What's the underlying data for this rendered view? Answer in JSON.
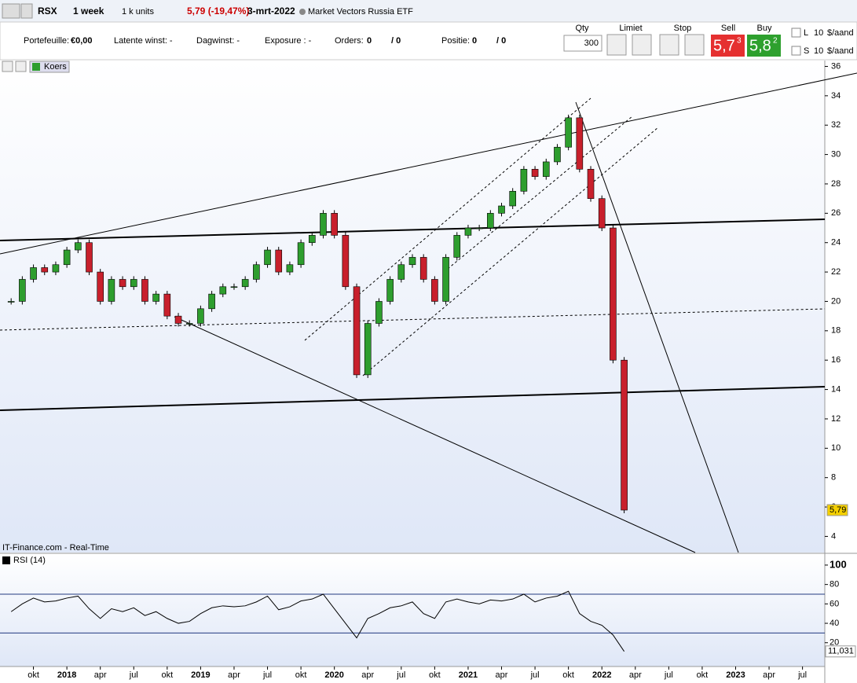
{
  "toolbar": {
    "symbol": "RSX",
    "interval": "1 week",
    "units": "1 k units",
    "change": "5,79 (-19,47%)",
    "date": "3-mrt-2022",
    "name": "Market Vectors Russia ETF"
  },
  "account": {
    "portfolio": "Portefeuille:",
    "portfolio_value": "€0,00",
    "latent": "Latente winst: -",
    "day": "Dagwinst: -",
    "exposure": "Exposure : -",
    "orders": "Orders:",
    "orders_n": "0",
    "orders_m": "/ 0",
    "position": "Positie:",
    "position_n": "0",
    "position_m": "/ 0"
  },
  "order": {
    "qty_label": "Qty",
    "qty": "300",
    "limit": "Limiet",
    "stop": "Stop",
    "sell": "Sell",
    "buy": "Buy",
    "sell_main": "5,7",
    "sell_sup": "3",
    "buy_main": "5,8",
    "buy_sup": "2",
    "l": "L",
    "l_value": "10",
    "l_unit": "$/aand",
    "s": "S",
    "s_value": "10",
    "s_unit": "$/aand"
  },
  "legend": "Koers",
  "source": "IT-Finance.com - Real-Time",
  "chart_data": [
    {
      "type": "candlestick",
      "series": [
        {
          "name": "Koers",
          "up_color": "#2e9e2e",
          "down_color": "#c8202c",
          "values": [
            20,
            21.5,
            22.3,
            22,
            22.5,
            23.5,
            24,
            22,
            20,
            21.5,
            21,
            21.5,
            20,
            20.5,
            19,
            18.5,
            18.5,
            19.5,
            20.5,
            21,
            21,
            21.5,
            22.5,
            23.5,
            22,
            22.5,
            24,
            24.5,
            26,
            24.5,
            21,
            15,
            18.5,
            20,
            21.5,
            22.5,
            23,
            21.5,
            20,
            23,
            24.5,
            25,
            25,
            26,
            26.5,
            27.5,
            29,
            28.5,
            29.5,
            30.5,
            32.5,
            29,
            27,
            25,
            16,
            5.79
          ],
          "last_value_label": "5,79"
        }
      ],
      "x": [
        "2017-08",
        "2017-09",
        "2017-10",
        "2017-11",
        "2017-12",
        "2018-01",
        "2018-02",
        "2018-03",
        "2018-04",
        "2018-05",
        "2018-06",
        "2018-07",
        "2018-08",
        "2018-09",
        "2018-10",
        "2018-11",
        "2018-12",
        "2019-01",
        "2019-02",
        "2019-03",
        "2019-04",
        "2019-05",
        "2019-06",
        "2019-07",
        "2019-08",
        "2019-09",
        "2019-10",
        "2019-11",
        "2019-12",
        "2020-01",
        "2020-02",
        "2020-03",
        "2020-04",
        "2020-05",
        "2020-06",
        "2020-07",
        "2020-08",
        "2020-09",
        "2020-10",
        "2020-11",
        "2020-12",
        "2021-01",
        "2021-02",
        "2021-03",
        "2021-04",
        "2021-05",
        "2021-06",
        "2021-07",
        "2021-08",
        "2021-09",
        "2021-10",
        "2021-11",
        "2021-12",
        "2022-01",
        "2022-02",
        "2022-03"
      ],
      "xlim": [
        "2017-07",
        "2023-09"
      ],
      "xticks": [
        {
          "value": "2017-10",
          "label": "okt"
        },
        {
          "value": "2018-01",
          "label": "2018"
        },
        {
          "value": "2018-04",
          "label": "apr"
        },
        {
          "value": "2018-07",
          "label": "jul"
        },
        {
          "value": "2018-10",
          "label": "okt"
        },
        {
          "value": "2019-01",
          "label": "2019"
        },
        {
          "value": "2019-04",
          "label": "apr"
        },
        {
          "value": "2019-07",
          "label": "jul"
        },
        {
          "value": "2019-10",
          "label": "okt"
        },
        {
          "value": "2020-01",
          "label": "2020"
        },
        {
          "value": "2020-04",
          "label": "apr"
        },
        {
          "value": "2020-07",
          "label": "jul"
        },
        {
          "value": "2020-10",
          "label": "okt"
        },
        {
          "value": "2021-01",
          "label": "2021"
        },
        {
          "value": "2021-04",
          "label": "apr"
        },
        {
          "value": "2021-07",
          "label": "jul"
        },
        {
          "value": "2021-10",
          "label": "okt"
        },
        {
          "value": "2022-01",
          "label": "2022"
        },
        {
          "value": "2022-04",
          "label": "apr"
        },
        {
          "value": "2022-07",
          "label": "jul"
        },
        {
          "value": "2022-10",
          "label": "okt"
        },
        {
          "value": "2023-01",
          "label": "2023"
        },
        {
          "value": "2023-04",
          "label": "apr"
        },
        {
          "value": "2023-07",
          "label": "jul"
        }
      ],
      "ylim": [
        2.9,
        36.4
      ],
      "yticks": [
        4,
        6,
        8,
        10,
        12,
        14,
        16,
        18,
        20,
        22,
        24,
        26,
        28,
        30,
        32,
        34,
        36
      ]
    },
    {
      "type": "line",
      "title": "RSI (14)",
      "series": [
        {
          "name": "RSI (14)",
          "color": "#000000",
          "values": [
            52,
            60,
            66,
            62,
            63,
            66,
            68,
            55,
            45,
            55,
            52,
            56,
            48,
            52,
            45,
            40,
            42,
            50,
            56,
            58,
            57,
            58,
            62,
            68,
            54,
            57,
            63,
            65,
            70,
            55,
            40,
            25,
            45,
            50,
            56,
            58,
            62,
            50,
            45,
            62,
            65,
            62,
            60,
            64,
            63,
            65,
            70,
            62,
            66,
            68,
            73,
            50,
            42,
            38,
            28,
            11.031
          ],
          "last_value_label": "11,031"
        }
      ],
      "ylim": [
        -4.5,
        111.3
      ],
      "yticks": [
        20,
        40,
        60,
        80,
        100
      ],
      "levels": [
        30,
        70
      ]
    }
  ]
}
